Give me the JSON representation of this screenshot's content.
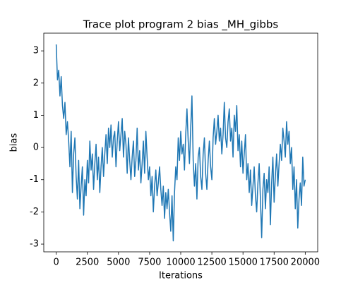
{
  "chart_data": {
    "type": "line",
    "title": "Trace plot program 2 bias _MH_gibbs",
    "xlabel": "Iterations",
    "ylabel": "bias",
    "x": [
      0,
      100,
      200,
      300,
      400,
      500,
      600,
      700,
      800,
      900,
      1000,
      1100,
      1200,
      1300,
      1400,
      1500,
      1600,
      1700,
      1800,
      1900,
      2000,
      2100,
      2200,
      2300,
      2400,
      2500,
      2600,
      2700,
      2800,
      2900,
      3000,
      3100,
      3200,
      3300,
      3400,
      3500,
      3600,
      3700,
      3800,
      3900,
      4000,
      4100,
      4200,
      4300,
      4400,
      4500,
      4600,
      4700,
      4800,
      4900,
      5000,
      5100,
      5200,
      5300,
      5400,
      5500,
      5600,
      5700,
      5800,
      5900,
      6000,
      6100,
      6200,
      6300,
      6400,
      6500,
      6600,
      6700,
      6800,
      6900,
      7000,
      7100,
      7200,
      7300,
      7400,
      7500,
      7600,
      7700,
      7800,
      7900,
      8000,
      8100,
      8200,
      8300,
      8400,
      8500,
      8600,
      8700,
      8800,
      8900,
      9000,
      9100,
      9200,
      9300,
      9400,
      9500,
      9600,
      9700,
      9800,
      9900,
      10000,
      10100,
      10200,
      10300,
      10400,
      10500,
      10600,
      10700,
      10800,
      10900,
      11000,
      11100,
      11200,
      11300,
      11400,
      11500,
      11600,
      11700,
      11800,
      11900,
      12000,
      12100,
      12200,
      12300,
      12400,
      12500,
      12600,
      12700,
      12800,
      12900,
      13000,
      13100,
      13200,
      13300,
      13400,
      13500,
      13600,
      13700,
      13800,
      13900,
      14000,
      14100,
      14200,
      14300,
      14400,
      14500,
      14600,
      14700,
      14800,
      14900,
      15000,
      15100,
      15200,
      15300,
      15400,
      15500,
      15600,
      15700,
      15800,
      15900,
      16000,
      16100,
      16200,
      16300,
      16400,
      16500,
      16600,
      16700,
      16800,
      16900,
      17000,
      17100,
      17200,
      17300,
      17400,
      17500,
      17600,
      17700,
      17800,
      17900,
      18000,
      18100,
      18200,
      18300,
      18400,
      18500,
      18600,
      18700,
      18800,
      18900,
      19000,
      19100,
      19200,
      19300,
      19400,
      19500,
      19600,
      19700,
      19800,
      19900,
      20000
    ],
    "series": [
      {
        "name": "bias",
        "color": "#1f77b4",
        "values": [
          3.2,
          2.1,
          2.4,
          1.6,
          2.2,
          1.3,
          0.9,
          1.4,
          0.4,
          0.8,
          0.2,
          -0.6,
          0.5,
          -1.4,
          -0.2,
          0.3,
          -0.9,
          -1.6,
          -0.4,
          -1.9,
          -1.2,
          -0.6,
          -2.1,
          -1.0,
          -1.5,
          -0.4,
          -1.1,
          0.2,
          -0.7,
          -0.2,
          -1.3,
          -0.5,
          0.1,
          -1.0,
          -0.3,
          -1.4,
          -0.6,
          0.0,
          -0.9,
          -0.2,
          0.4,
          -0.5,
          0.6,
          0.0,
          0.7,
          -0.3,
          0.3,
          0.5,
          -0.6,
          0.2,
          0.8,
          -0.1,
          0.4,
          0.9,
          -0.3,
          0.5,
          0.1,
          -0.8,
          0.3,
          -0.4,
          -1.0,
          -0.3,
          0.2,
          -0.9,
          -0.4,
          0.6,
          -0.7,
          -0.1,
          -1.1,
          -0.5,
          0.2,
          -0.8,
          0.5,
          -0.3,
          -1.0,
          -0.6,
          -1.5,
          -0.9,
          -2.0,
          -1.2,
          -0.7,
          -1.5,
          -1.1,
          -0.6,
          -1.3,
          -1.8,
          -1.2,
          -2.2,
          -1.4,
          -1.9,
          -1.3,
          -2.0,
          -2.6,
          -1.5,
          -2.9,
          -1.4,
          -0.6,
          -1.0,
          0.3,
          -0.4,
          0.5,
          -0.2,
          0.1,
          -0.7,
          0.4,
          1.2,
          0.2,
          -0.5,
          0.6,
          1.6,
          -0.4,
          -1.2,
          -0.5,
          -1.6,
          -0.3,
          0.0,
          -0.9,
          -1.3,
          -0.2,
          0.3,
          -0.8,
          -1.3,
          -0.4,
          0.2,
          -0.6,
          -1.0,
          0.3,
          0.9,
          0.1,
          0.5,
          1.0,
          0.2,
          0.6,
          -0.2,
          0.4,
          1.4,
          0.3,
          0.0,
          0.8,
          1.2,
          0.2,
          0.6,
          -0.3,
          1.0,
          0.5,
          1.3,
          -0.1,
          0.4,
          -0.6,
          0.2,
          -0.8,
          -0.2,
          0.4,
          -1.0,
          -0.5,
          -1.4,
          -0.7,
          -1.8,
          -1.2,
          -0.6,
          -1.5,
          -2.0,
          -1.1,
          -0.5,
          -1.6,
          -2.8,
          -1.3,
          -0.8,
          -1.9,
          -1.0,
          -1.4,
          -0.6,
          -2.4,
          -1.1,
          -0.3,
          -1.7,
          -0.9,
          -0.2,
          -1.2,
          -0.5,
          0.1,
          -0.4,
          0.6,
          0.2,
          -0.3,
          0.8,
          0.1,
          0.5,
          -0.5,
          0.0,
          -1.3,
          -0.6,
          -1.9,
          -1.0,
          -2.5,
          -1.6,
          -1.1,
          -1.8,
          -0.3,
          -1.2,
          -1.0
        ]
      }
    ],
    "xlim": [
      -1000,
      21000
    ],
    "ylim": [
      -3.24,
      3.55
    ],
    "xticks": [
      0,
      2500,
      5000,
      7500,
      10000,
      12500,
      15000,
      17500,
      20000
    ],
    "yticks": [
      -3,
      -2,
      -1,
      0,
      1,
      2,
      3
    ],
    "grid": false
  }
}
